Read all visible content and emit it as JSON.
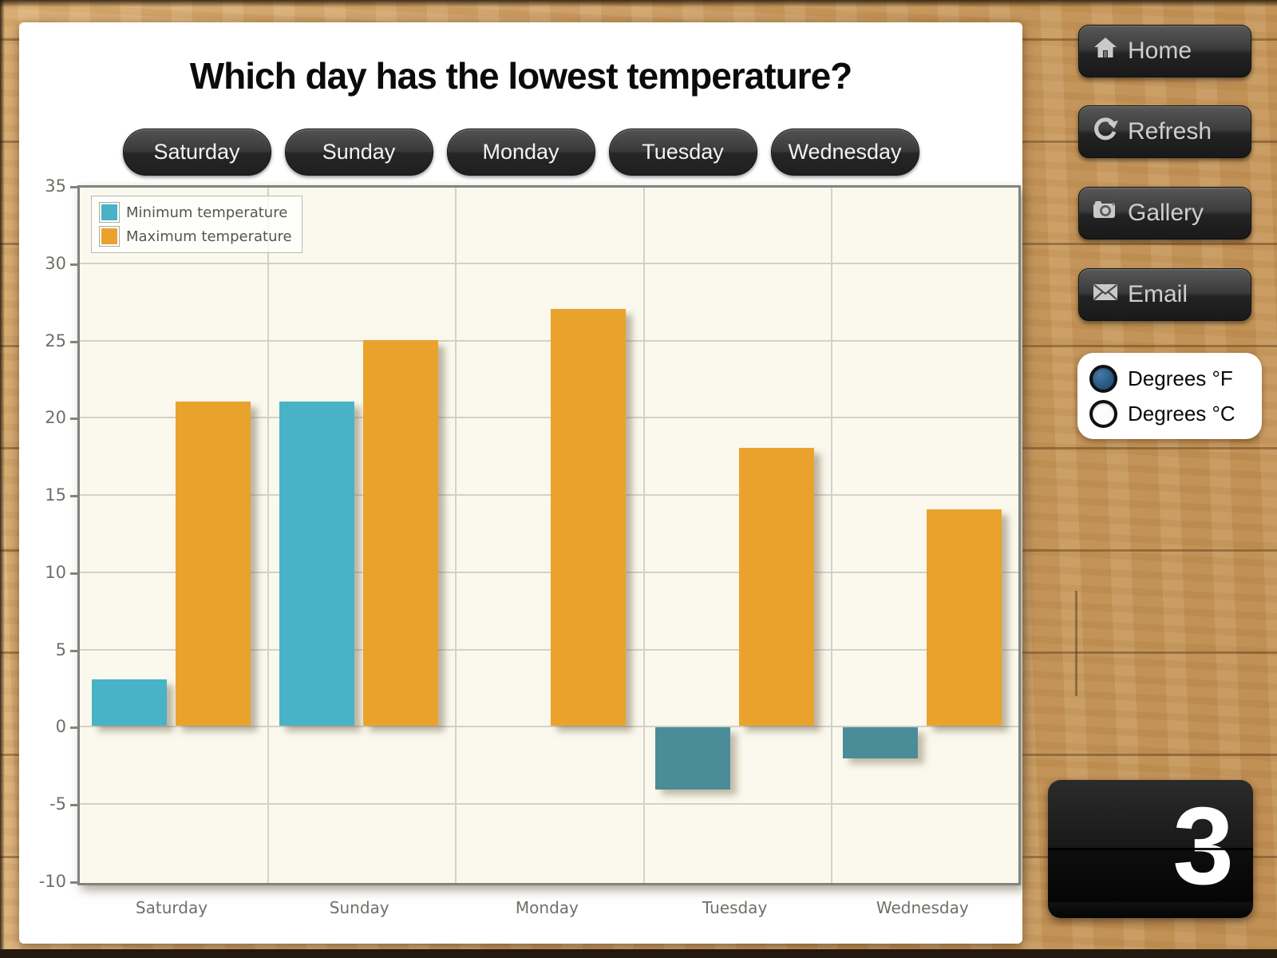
{
  "question": {
    "title": "Which day has the lowest temperature?"
  },
  "answer_buttons": [
    "Saturday",
    "Sunday",
    "Monday",
    "Tuesday",
    "Wednesday"
  ],
  "chart_data": {
    "type": "bar",
    "title": "",
    "categories": [
      "Saturday",
      "Sunday",
      "Monday",
      "Tuesday",
      "Wednesday"
    ],
    "series": [
      {
        "name": "Minimum temperature",
        "color": "#48B3C6",
        "negative_color": "#4A8D98",
        "values": [
          3,
          21,
          0,
          -4,
          -2
        ]
      },
      {
        "name": "Maximum temperature",
        "color": "#E9A32D",
        "negative_color": "#E9A32D",
        "values": [
          21,
          25,
          27,
          18,
          14
        ]
      }
    ],
    "ylim": [
      -10,
      35
    ],
    "ytick_step": 5,
    "yticks": [
      35,
      30,
      25,
      20,
      15,
      10,
      5,
      0,
      -5,
      -10
    ],
    "grid": true,
    "legend_position": "top-left",
    "plot_background": "#FBF9ED"
  },
  "sidebar": {
    "buttons": [
      {
        "label": "Home",
        "icon": "home-icon"
      },
      {
        "label": "Refresh",
        "icon": "refresh-icon"
      },
      {
        "label": "Gallery",
        "icon": "camera-icon"
      },
      {
        "label": "Email",
        "icon": "email-icon"
      }
    ],
    "units": {
      "selected_color": "#2A5A85",
      "options": [
        {
          "label": "Degrees °F",
          "selected": true
        },
        {
          "label": "Degrees °C",
          "selected": false
        }
      ]
    },
    "counter": "3"
  }
}
